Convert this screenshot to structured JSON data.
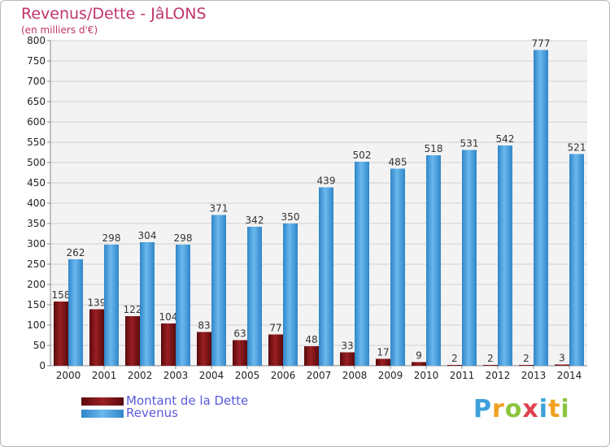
{
  "header": {
    "title": "Revenus/Dette - JâLONS",
    "subtitle": "(en milliers d'€)"
  },
  "logo": {
    "text": "Proxiti",
    "letters": [
      {
        "ch": "P",
        "color": "#3da0da"
      },
      {
        "ch": "r",
        "color": "#f0a020"
      },
      {
        "ch": "o",
        "color": "#8cc63f"
      },
      {
        "ch": "x",
        "color": "#e04050"
      },
      {
        "ch": "i",
        "color": "#3da0da"
      },
      {
        "ch": "t",
        "color": "#f0a020"
      },
      {
        "ch": "i",
        "color": "#8cc63f"
      }
    ]
  },
  "chart_data": {
    "type": "bar",
    "title": "Revenus/Dette - JâLONS",
    "subtitle": "(en milliers d'€)",
    "categories": [
      "2000",
      "2001",
      "2002",
      "2003",
      "2004",
      "2005",
      "2006",
      "2007",
      "2008",
      "2009",
      "2010",
      "2011",
      "2012",
      "2013",
      "2014"
    ],
    "series": [
      {
        "name": "Montant de la Dette",
        "color": "#7a0f12",
        "values": [
          158,
          139,
          122,
          104,
          83,
          63,
          77,
          48,
          33,
          17,
          9,
          2,
          2,
          2,
          3
        ]
      },
      {
        "name": "Revenus",
        "color": "#4aa3e3",
        "values": [
          262,
          298,
          304,
          298,
          371,
          342,
          350,
          439,
          502,
          485,
          518,
          531,
          542,
          777,
          521
        ]
      }
    ],
    "ylim": [
      0,
      800
    ],
    "yticks": [
      0,
      50,
      100,
      150,
      200,
      250,
      300,
      350,
      400,
      450,
      500,
      550,
      600,
      650,
      700,
      750,
      800
    ],
    "grid": true,
    "legend_position": "bottom-left"
  }
}
